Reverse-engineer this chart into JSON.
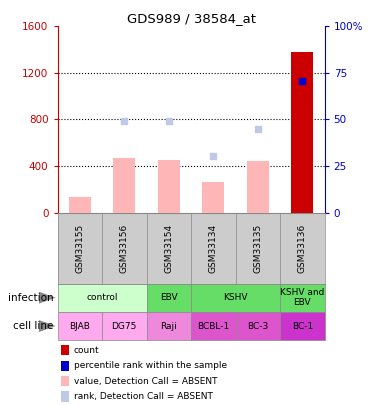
{
  "title": "GDS989 / 38584_at",
  "samples": [
    "GSM33155",
    "GSM33156",
    "GSM33154",
    "GSM33134",
    "GSM33135",
    "GSM33136"
  ],
  "bar_values": [
    130,
    470,
    450,
    260,
    440,
    1380
  ],
  "bar_color_absent": "#ffb6b6",
  "bar_color_present": "#cc0000",
  "rank_squares": [
    null,
    790,
    785,
    485,
    720,
    1130
  ],
  "rank_sq_color_absent": "#c0c8e8",
  "rank_sq_color_present": "#0000cc",
  "ylim_left": [
    0,
    1600
  ],
  "ylim_right": [
    0,
    100
  ],
  "yticks_left": [
    0,
    400,
    800,
    1200,
    1600
  ],
  "yticks_right": [
    0,
    25,
    50,
    75,
    100
  ],
  "yticklabels_right": [
    "0",
    "25",
    "50",
    "75",
    "100%"
  ],
  "left_tick_color": "#cc0000",
  "right_tick_color": "#0000cc",
  "infection_labels": [
    {
      "label": "control",
      "span": [
        0,
        2
      ],
      "color": "#ccffcc"
    },
    {
      "label": "EBV",
      "span": [
        2,
        3
      ],
      "color": "#66dd66"
    },
    {
      "label": "KSHV",
      "span": [
        3,
        5
      ],
      "color": "#66dd66"
    },
    {
      "label": "KSHV and\nEBV",
      "span": [
        5,
        6
      ],
      "color": "#66dd66"
    }
  ],
  "cell_line_labels": [
    {
      "label": "BJAB",
      "span": [
        0,
        1
      ],
      "color": "#ffaaee"
    },
    {
      "label": "DG75",
      "span": [
        1,
        2
      ],
      "color": "#ffaaee"
    },
    {
      "label": "Raji",
      "span": [
        2,
        3
      ],
      "color": "#ee88dd"
    },
    {
      "label": "BCBL-1",
      "span": [
        3,
        4
      ],
      "color": "#dd55cc"
    },
    {
      "label": "BC-3",
      "span": [
        4,
        5
      ],
      "color": "#dd55cc"
    },
    {
      "label": "BC-1",
      "span": [
        5,
        6
      ],
      "color": "#cc33cc"
    }
  ],
  "legend_items": [
    {
      "color": "#cc0000",
      "label": "count"
    },
    {
      "color": "#0000cc",
      "label": "percentile rank within the sample"
    },
    {
      "color": "#ffb6b6",
      "label": "value, Detection Call = ABSENT"
    },
    {
      "color": "#c0c8e8",
      "label": "rank, Detection Call = ABSENT"
    }
  ],
  "bar_width": 0.5,
  "n_samples": 6,
  "absent_flags": [
    true,
    true,
    true,
    true,
    true,
    false
  ],
  "rank_absent_flags": [
    false,
    true,
    true,
    true,
    true,
    false
  ],
  "sample_bg_color": "#cccccc",
  "grid_color": "black",
  "grid_lines": [
    400,
    800,
    1200
  ]
}
